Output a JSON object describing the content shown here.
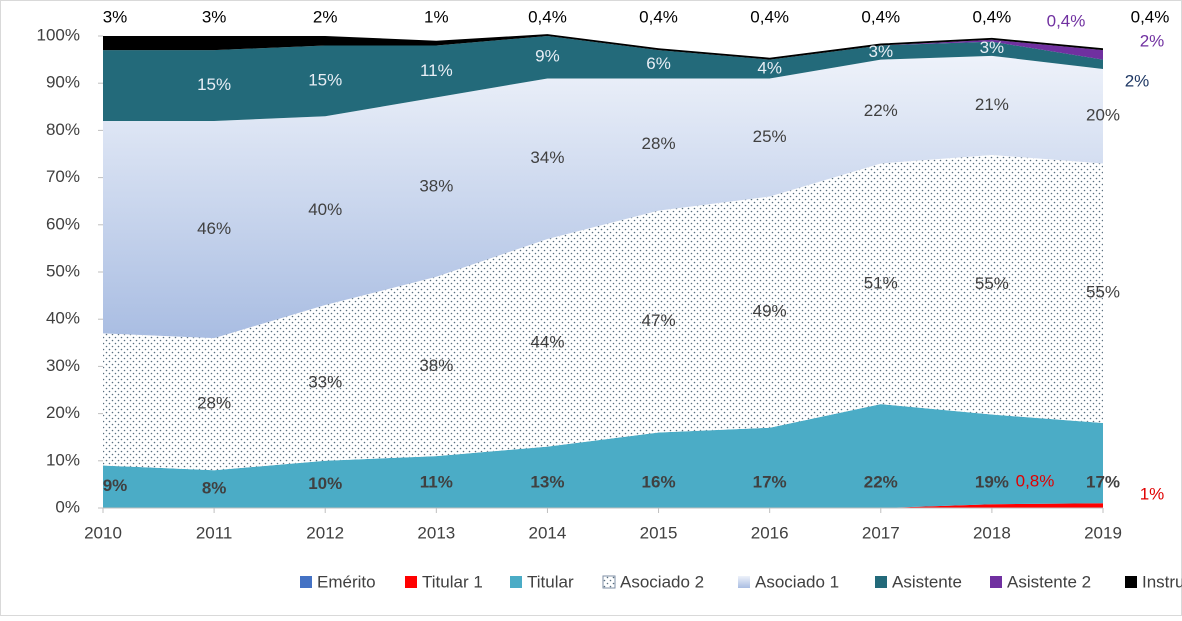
{
  "chart_data": {
    "type": "stacked_area",
    "categories": [
      "2010",
      "2011",
      "2012",
      "2013",
      "2014",
      "2015",
      "2016",
      "2017",
      "2018",
      "2019"
    ],
    "ylim": [
      0,
      100
    ],
    "yticks": [
      {
        "value": 0,
        "label": "0%"
      },
      {
        "value": 10,
        "label": "10%"
      },
      {
        "value": 20,
        "label": "20%"
      },
      {
        "value": 30,
        "label": "30%"
      },
      {
        "value": 40,
        "label": "40%"
      },
      {
        "value": 50,
        "label": "50%"
      },
      {
        "value": 60,
        "label": "60%"
      },
      {
        "value": 70,
        "label": "70%"
      },
      {
        "value": 80,
        "label": "80%"
      },
      {
        "value": 90,
        "label": "90%"
      },
      {
        "value": 100,
        "label": "100%"
      }
    ],
    "legend": "bottom",
    "series": [
      {
        "name": "Emérito",
        "color": "#4472c4",
        "values": [
          0,
          0,
          0,
          0,
          0,
          0,
          0,
          0,
          0,
          0
        ]
      },
      {
        "name": "Titular 1",
        "color": "#ff0000",
        "values": [
          0,
          0,
          0,
          0,
          0,
          0,
          0,
          0,
          0.8,
          1
        ],
        "value_labels": [
          null,
          null,
          null,
          null,
          null,
          null,
          null,
          null,
          "0,8%",
          "1%"
        ]
      },
      {
        "name": "Titular",
        "color": "#4bacc6",
        "values": [
          9,
          8,
          10,
          11,
          13,
          16,
          17,
          22,
          19,
          17
        ],
        "value_labels": [
          "9%",
          "8%",
          "10%",
          "11%",
          "13%",
          "16%",
          "17%",
          "22%",
          "19%",
          "17%"
        ]
      },
      {
        "name": "Asociado 2",
        "color": "#ffffff",
        "values": [
          28,
          28,
          33,
          38,
          44,
          47,
          49,
          51,
          55,
          55
        ],
        "value_labels": [
          null,
          "28%",
          "33%",
          "38%",
          "44%",
          "47%",
          "49%",
          "51%",
          "55%",
          "55%"
        ]
      },
      {
        "name": "Asociado 1",
        "color": "#b4c7e7",
        "values": [
          45,
          46,
          40,
          38,
          34,
          28,
          25,
          22,
          21,
          20
        ],
        "value_labels": [
          null,
          "46%",
          "40%",
          "38%",
          "34%",
          "28%",
          "25%",
          "22%",
          "21%",
          "20%"
        ]
      },
      {
        "name": "Asistente",
        "color": "#236a7a",
        "values": [
          15,
          15,
          15,
          11,
          9,
          6,
          4,
          3,
          3,
          2
        ],
        "value_labels": [
          null,
          "15%",
          "15%",
          "11%",
          "9%",
          "6%",
          "4%",
          "3%",
          "3%",
          "2%"
        ]
      },
      {
        "name": "Asistente 2",
        "color": "#7030a0",
        "values": [
          0,
          0,
          0,
          0,
          0,
          0,
          0,
          0,
          0.4,
          2
        ],
        "value_labels": [
          null,
          null,
          null,
          null,
          null,
          null,
          null,
          null,
          "0,4%",
          "2%"
        ]
      },
      {
        "name": "Instructor",
        "color": "#000000",
        "values": [
          3,
          3,
          2,
          1,
          0.4,
          0.4,
          0.4,
          0.4,
          0.4,
          0.4
        ],
        "value_labels": [
          "3%",
          "3%",
          "2%",
          "1%",
          "0,4%",
          "0,4%",
          "0,4%",
          "0,4%",
          "0,4%",
          "0,4%"
        ]
      }
    ]
  }
}
